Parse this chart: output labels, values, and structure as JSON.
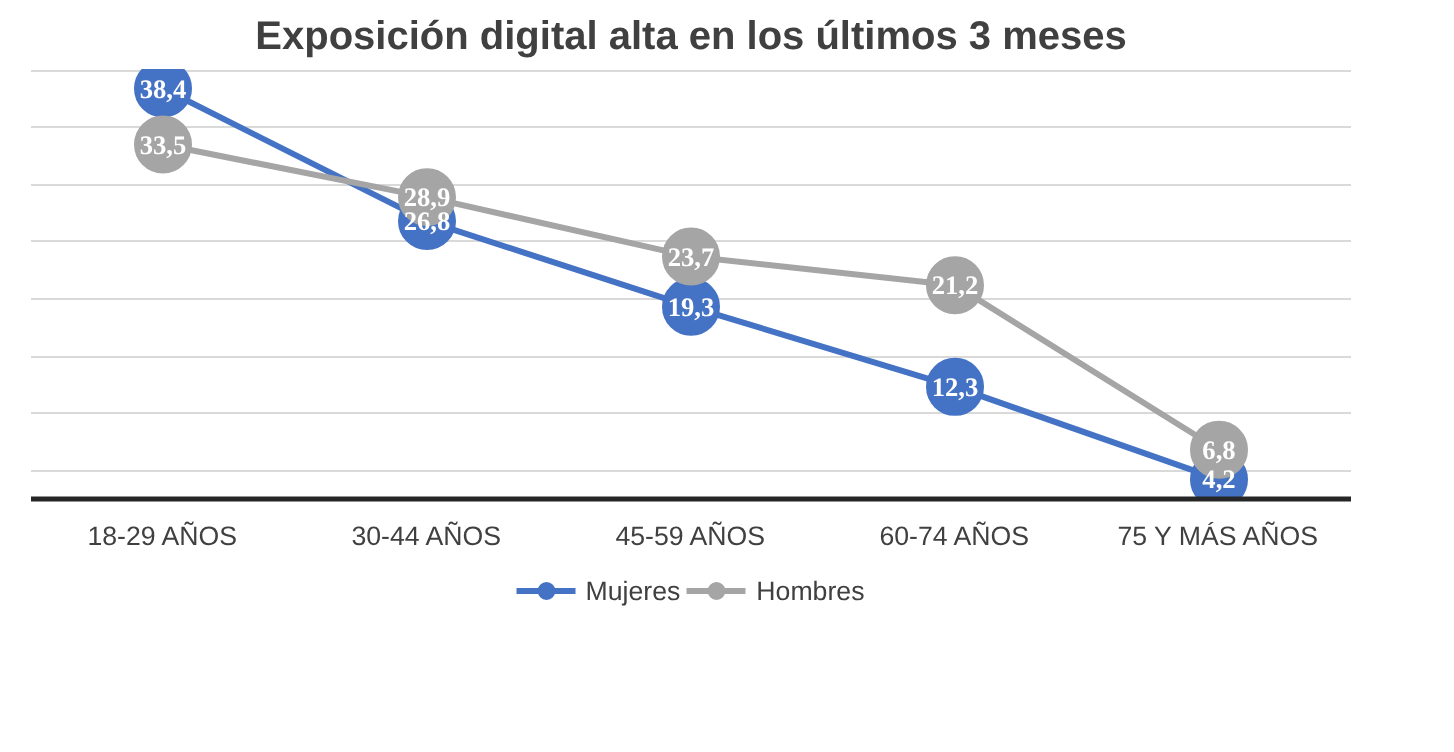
{
  "chart_data": {
    "type": "line",
    "title": "Exposición digital alta en los últimos 3 meses",
    "categories": [
      "18-29 AÑOS",
      "30-44 AÑOS",
      "45-59 AÑOS",
      "60-74 AÑOS",
      "75 Y MÁS AÑOS"
    ],
    "series": [
      {
        "name": "Mujeres",
        "color": "#4472c4",
        "values": [
          38.4,
          26.8,
          19.3,
          12.3,
          4.2
        ],
        "value_labels": [
          "38,4",
          "26,8",
          "19,3",
          "12,3",
          "4,2"
        ]
      },
      {
        "name": "Hombres",
        "color": "#a5a5a5",
        "values": [
          33.5,
          28.9,
          23.7,
          21.2,
          6.8
        ],
        "value_labels": [
          "33,5",
          "28,9",
          "23,7",
          "21,2",
          "6,8"
        ]
      }
    ],
    "tick_labels": "x",
    "grid": "y",
    "legend": "bottom",
    "marker": "circle",
    "line_style": "solid"
  }
}
